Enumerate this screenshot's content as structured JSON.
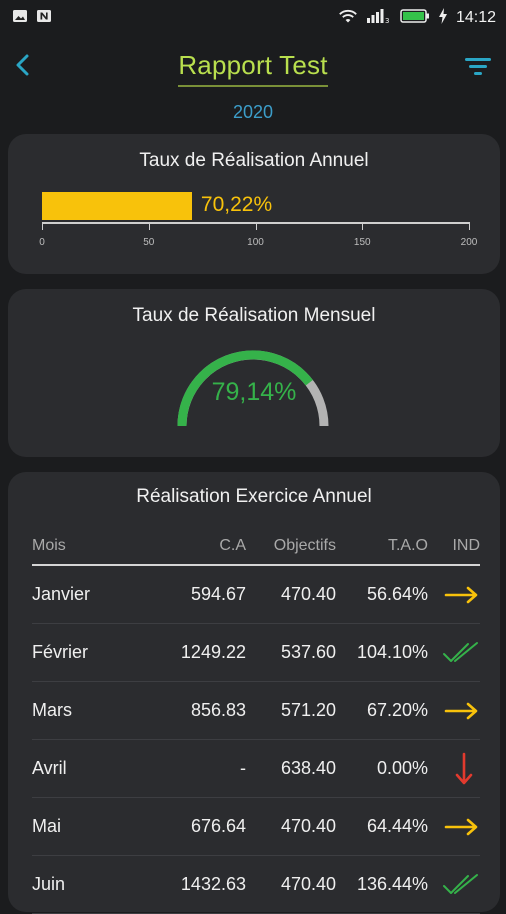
{
  "status_bar": {
    "time": "14:12",
    "icons": [
      "image-icon",
      "notification-n-icon",
      "wifi-icon",
      "signal-icon",
      "battery-icon",
      "charging-icon"
    ]
  },
  "header": {
    "title": "Rapport Test",
    "year": "2020",
    "back_icon": "chevron-left-icon",
    "filter_icon": "filter-icon"
  },
  "annual_card": {
    "title": "Taux de Réalisation Annuel",
    "value_label": "70,22%",
    "value": 70.22,
    "axis_max": 200,
    "ticks": [
      "0",
      "50",
      "100",
      "150",
      "200"
    ],
    "bar_color": "#f8c20b"
  },
  "monthly_card": {
    "title": "Taux de Réalisation Mensuel",
    "value_label": "79,14%",
    "value": 79.14,
    "gauge_color": "#35b24a",
    "track_color": "#b3b3b3"
  },
  "exercise_card": {
    "title": "Réalisation Exercice Annuel",
    "columns": [
      "Mois",
      "C.A",
      "Objectifs",
      "T.A.O",
      "IND"
    ],
    "rows": [
      {
        "mois": "Janvier",
        "ca": "594.67",
        "objectif": "470.40",
        "tao": "56.64%",
        "ind": "arrow-right-icon"
      },
      {
        "mois": "Février",
        "ca": "1249.22",
        "objectif": "537.60",
        "tao": "104.10%",
        "ind": "double-check-icon"
      },
      {
        "mois": "Mars",
        "ca": "856.83",
        "objectif": "571.20",
        "tao": "67.20%",
        "ind": "arrow-right-icon"
      },
      {
        "mois": "Avril",
        "ca": "-",
        "objectif": "638.40",
        "tao": "0.00%",
        "ind": "arrow-down-icon"
      },
      {
        "mois": "Mai",
        "ca": "676.64",
        "objectif": "470.40",
        "tao": "64.44%",
        "ind": "arrow-right-icon"
      },
      {
        "mois": "Juin",
        "ca": "1432.63",
        "objectif": "470.40",
        "tao": "136.44%",
        "ind": "double-check-icon"
      }
    ]
  },
  "colors": {
    "background": "#1b1c1e",
    "card": "#2b2c2f",
    "title_green": "#b9df4e",
    "year_blue": "#3c9dc9",
    "accent_teal": "#2aa6c5",
    "yellow": "#f8c20b",
    "green": "#35b24a",
    "red": "#e23a2e"
  }
}
